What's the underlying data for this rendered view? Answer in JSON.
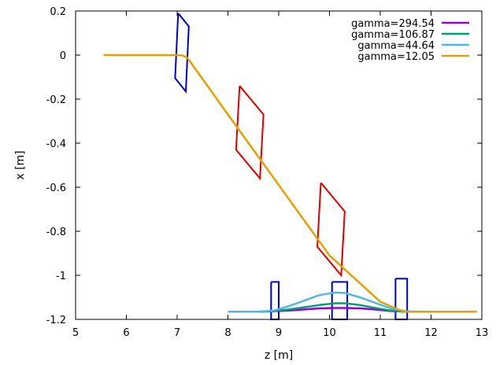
{
  "chart_data": {
    "type": "line",
    "xlabel": "z [m]",
    "ylabel": "x [m]",
    "xlim": [
      5,
      13
    ],
    "ylim": [
      -1.2,
      0.2
    ],
    "xticks": [
      "5",
      "6",
      "7",
      "8",
      "9",
      "10",
      "11",
      "12",
      "13"
    ],
    "yticks": [
      "0.2",
      "0",
      "-0.2",
      "-0.4",
      "-0.6",
      "-0.8",
      "-1",
      "-1.2"
    ],
    "grid": false,
    "legend_position": "top-right",
    "series": [
      {
        "name": "gamma=294.54",
        "color": "#9400d3",
        "x": [
          8.0,
          8.3,
          8.6,
          8.9,
          9.2,
          9.5,
          9.8,
          10.1,
          10.3,
          10.6,
          10.9,
          11.2,
          11.5,
          11.8,
          12.1,
          12.4,
          12.9
        ],
        "y": [
          -1.165,
          -1.165,
          -1.165,
          -1.163,
          -1.16,
          -1.155,
          -1.15,
          -1.148,
          -1.148,
          -1.15,
          -1.155,
          -1.162,
          -1.165,
          -1.165,
          -1.165,
          -1.165,
          -1.165
        ]
      },
      {
        "name": "gamma=106.87",
        "color": "#009e73",
        "x": [
          8.0,
          8.3,
          8.6,
          8.9,
          9.2,
          9.5,
          9.8,
          10.1,
          10.3,
          10.6,
          10.9,
          11.2,
          11.5,
          11.8,
          12.1,
          12.4,
          12.9
        ],
        "y": [
          -1.165,
          -1.165,
          -1.165,
          -1.162,
          -1.155,
          -1.145,
          -1.135,
          -1.127,
          -1.127,
          -1.135,
          -1.148,
          -1.16,
          -1.165,
          -1.165,
          -1.165,
          -1.165,
          -1.165
        ]
      },
      {
        "name": "gamma=44.64",
        "color": "#56b4e9",
        "x": [
          8.0,
          8.3,
          8.6,
          8.9,
          9.2,
          9.5,
          9.8,
          10.1,
          10.3,
          10.6,
          10.9,
          11.2,
          11.5,
          11.8,
          12.1,
          12.4,
          12.9
        ],
        "y": [
          -1.165,
          -1.165,
          -1.165,
          -1.16,
          -1.14,
          -1.115,
          -1.09,
          -1.078,
          -1.08,
          -1.1,
          -1.125,
          -1.15,
          -1.163,
          -1.165,
          -1.165,
          -1.165,
          -1.165
        ]
      },
      {
        "name": "gamma=12.05",
        "color": "#e69f00",
        "x": [
          5.55,
          6.0,
          6.5,
          7.0,
          7.1,
          7.2,
          8.0,
          9.0,
          10.0,
          11.0,
          11.4,
          11.5,
          11.6,
          12.0,
          12.9
        ],
        "y": [
          0.0,
          0.0,
          0.0,
          0.0,
          -0.002,
          -0.012,
          -0.27,
          -0.59,
          -0.91,
          -1.12,
          -1.16,
          -1.165,
          -1.165,
          -1.165,
          -1.165
        ]
      }
    ],
    "magnets": [
      {
        "color": "#0000cc",
        "x": [
          7.02,
          7.23,
          7.17,
          6.96,
          7.02
        ],
        "y": [
          0.19,
          0.13,
          -0.165,
          -0.105,
          0.19
        ]
      },
      {
        "color": "#dd0000",
        "x": [
          8.23,
          8.7,
          8.63,
          8.16,
          8.23
        ],
        "y": [
          -0.14,
          -0.27,
          -0.56,
          -0.43,
          -0.14
        ]
      },
      {
        "color": "#dd0000",
        "x": [
          9.83,
          10.3,
          10.23,
          9.76,
          9.83
        ],
        "y": [
          -0.58,
          -0.71,
          -1.0,
          -0.87,
          -0.58
        ]
      },
      {
        "color": "#0000cc",
        "x": [
          8.85,
          9.0,
          9.0,
          8.85,
          8.85
        ],
        "y": [
          -1.03,
          -1.03,
          -1.2,
          -1.2,
          -1.03
        ]
      },
      {
        "color": "#0000cc",
        "x": [
          10.05,
          10.35,
          10.35,
          10.05,
          10.05
        ],
        "y": [
          -1.03,
          -1.03,
          -1.2,
          -1.2,
          -1.03
        ]
      },
      {
        "color": "#0000cc",
        "x": [
          11.3,
          11.53,
          11.53,
          11.3,
          11.3
        ],
        "y": [
          -1.015,
          -1.015,
          -1.2,
          -1.2,
          -1.015
        ]
      }
    ]
  }
}
